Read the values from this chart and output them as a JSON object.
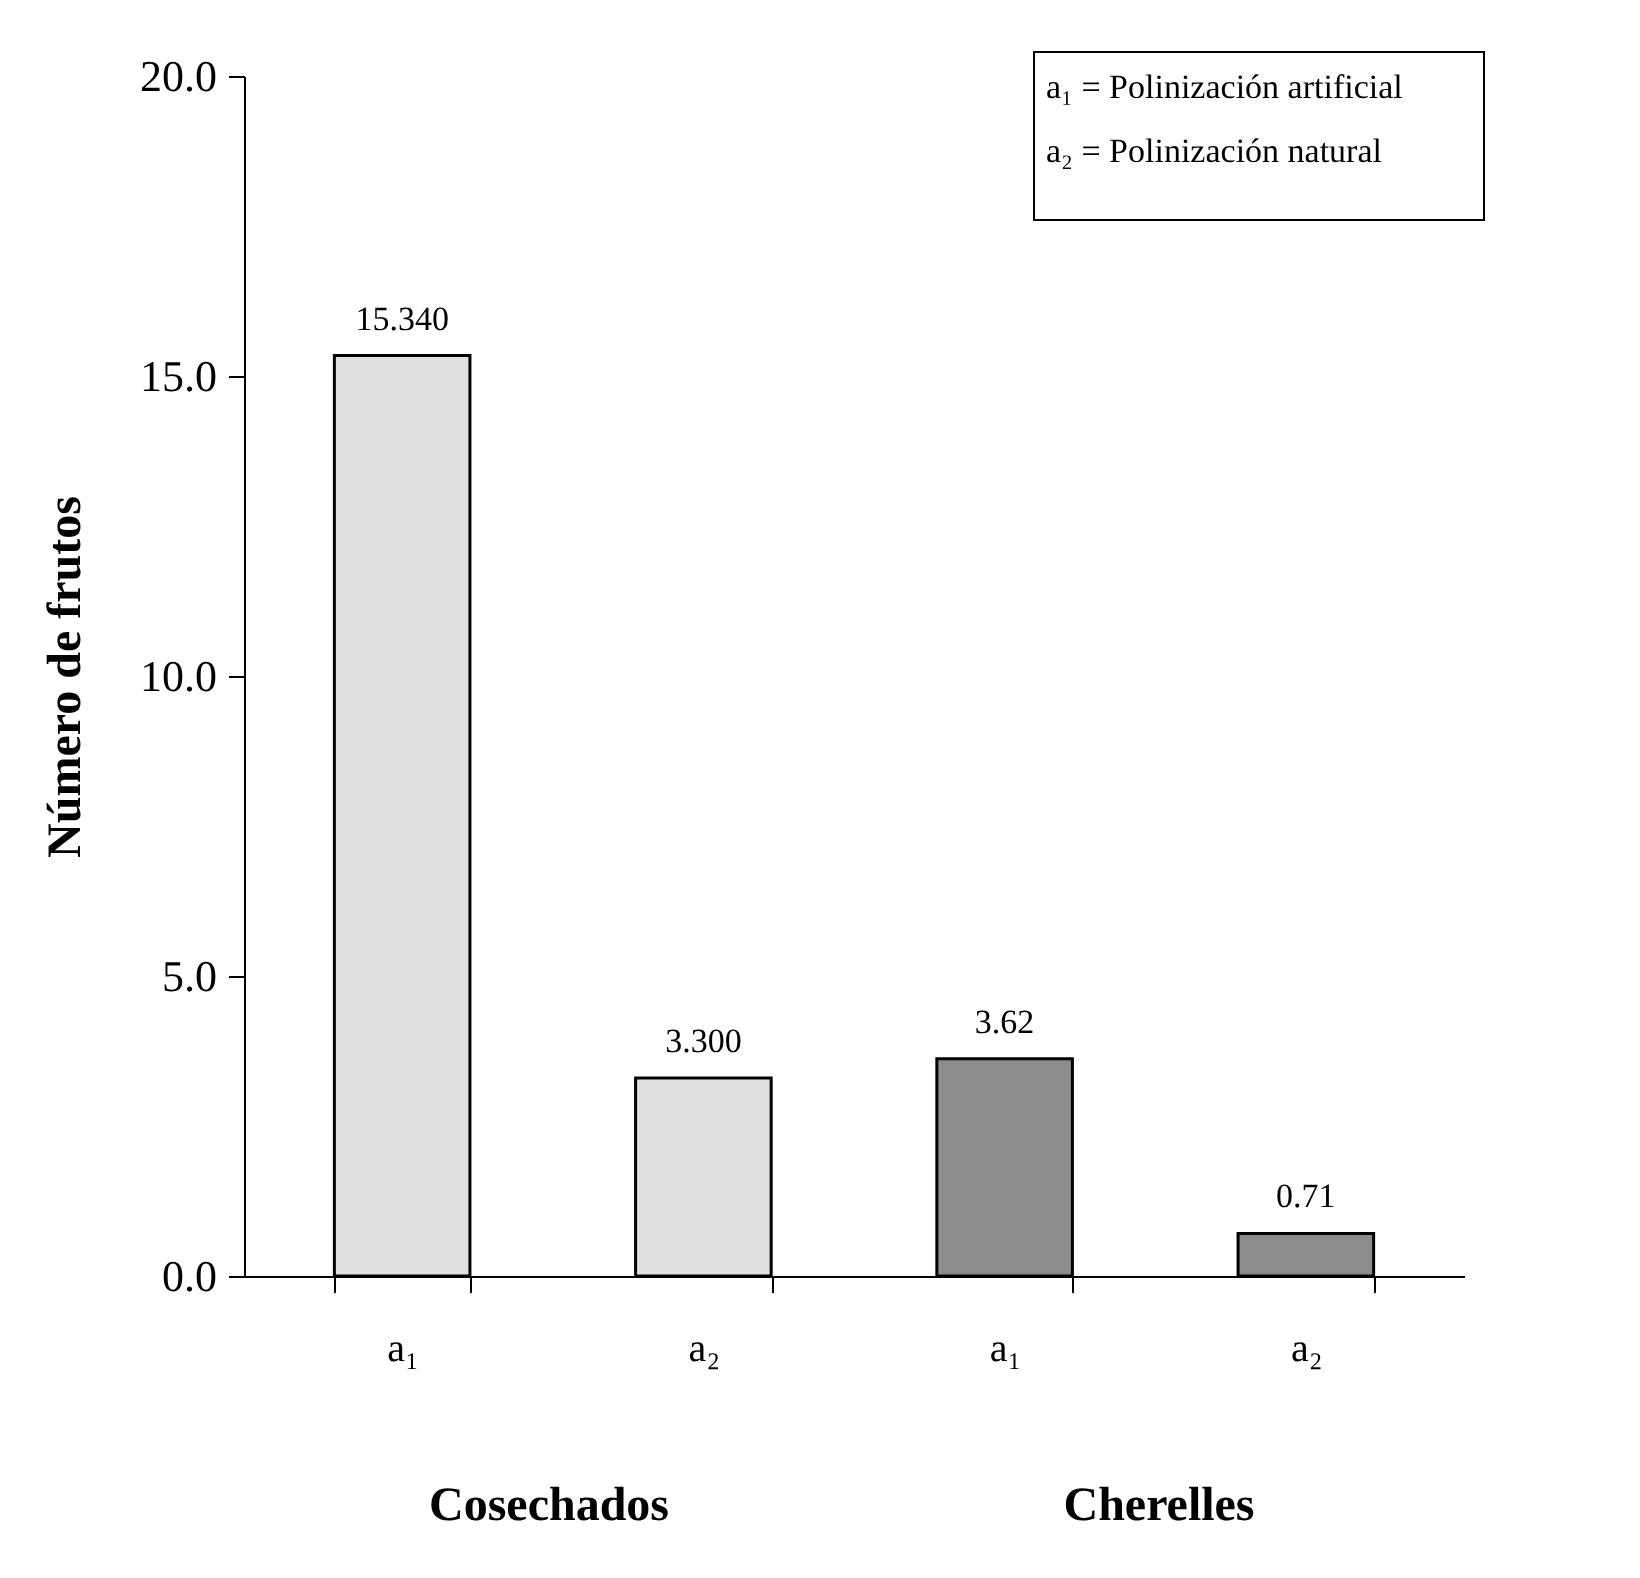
{
  "chart_data": {
    "type": "bar",
    "categories": [
      "a₁",
      "a₂",
      "a₁",
      "a₂"
    ],
    "values": [
      15.34,
      3.3,
      3.62,
      0.71
    ],
    "value_labels": [
      "15.340",
      "3.300",
      "3.62",
      "0.71"
    ],
    "colors": [
      "#e0e0e0",
      "#e0e0e0",
      "#8c8c8c",
      "#8c8c8c"
    ],
    "ylabel": "Número de frutos",
    "ylim": [
      0,
      20
    ],
    "yticks": [
      {
        "value": 0,
        "label": "0.0"
      },
      {
        "value": 5,
        "label": "5.0"
      },
      {
        "value": 10,
        "label": "10.0"
      },
      {
        "value": 15,
        "label": "15.0"
      },
      {
        "value": 20,
        "label": "20.0"
      }
    ],
    "annotations": [
      "a₁ = Polinización artificial",
      "a₂ = Polinización natural",
      "Cosechados",
      "Cherelles"
    ],
    "grid": false
  }
}
